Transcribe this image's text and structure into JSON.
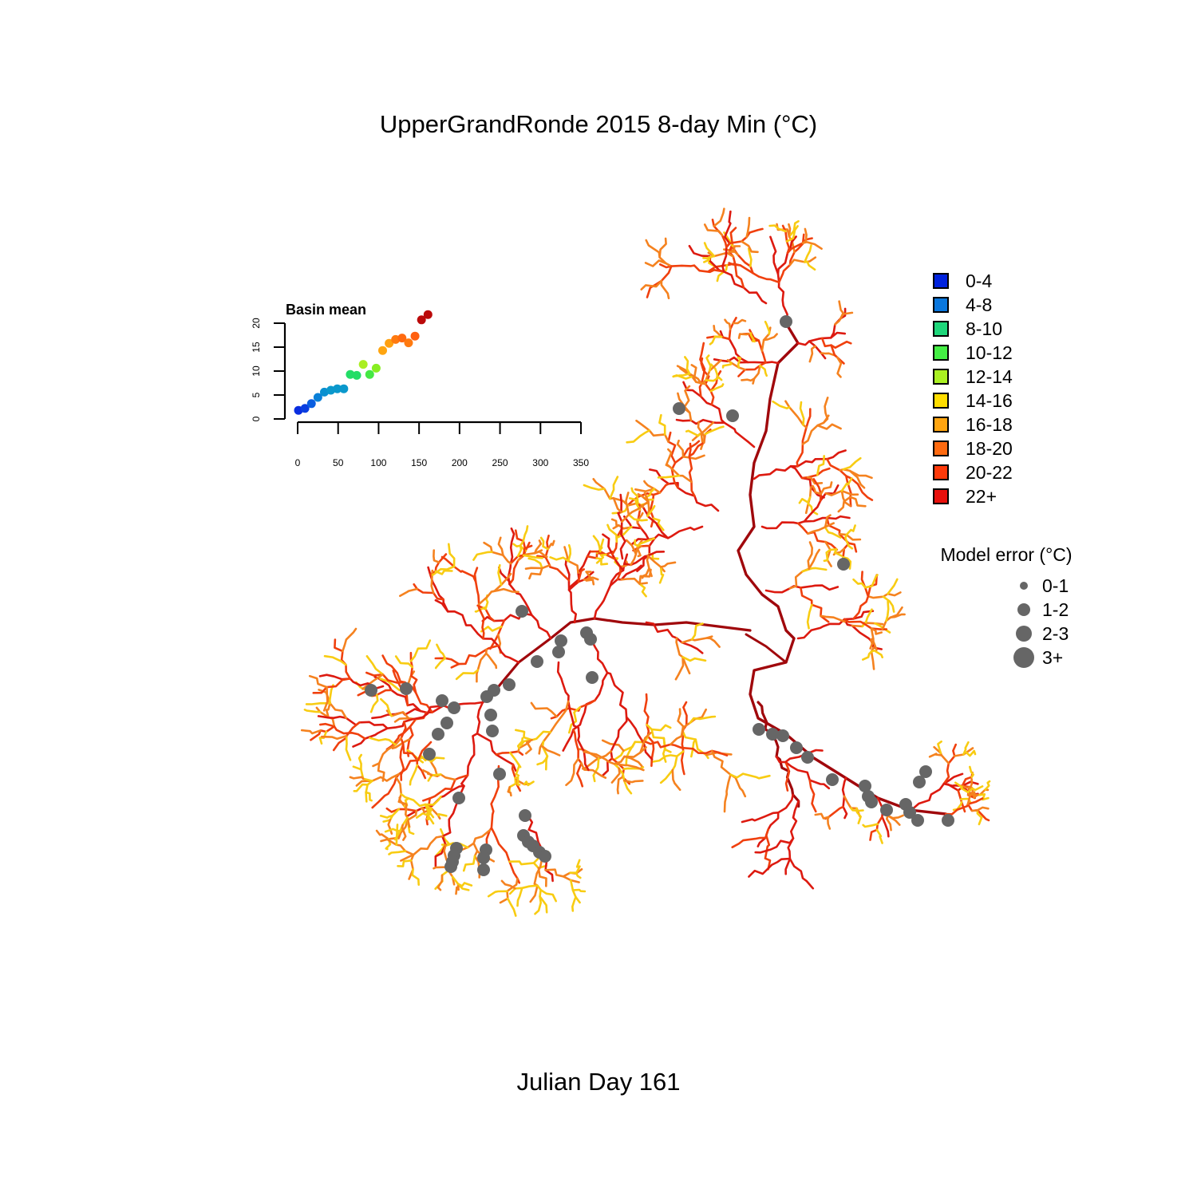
{
  "title": "UpperGrandRonde 2015 8-day Min (°C)",
  "subtitle": "Julian Day 161",
  "colors": {
    "stream_dark": "#a0080c",
    "stream_red": "#dd1a10",
    "stream_orange_red": "#f0400e",
    "stream_orange": "#f5821f",
    "stream_yellow": "#f8cc12",
    "site_marker": "#666666"
  },
  "temperature_legend": {
    "items": [
      {
        "label": "0-4",
        "color": "#0022dd"
      },
      {
        "label": "4-8",
        "color": "#0a77dd"
      },
      {
        "label": "8-10",
        "color": "#1ed67a"
      },
      {
        "label": "10-12",
        "color": "#44ee44"
      },
      {
        "label": "12-14",
        "color": "#aaf022"
      },
      {
        "label": "14-16",
        "color": "#ffdd00"
      },
      {
        "label": "16-18",
        "color": "#ffa510"
      },
      {
        "label": "18-20",
        "color": "#ff6a10"
      },
      {
        "label": "20-22",
        "color": "#ff3a0a"
      },
      {
        "label": "22+",
        "color": "#e8100c"
      }
    ]
  },
  "error_legend": {
    "title": "Model error (°C)",
    "items": [
      {
        "label": "0-1",
        "size": 1
      },
      {
        "label": "1-2",
        "size": 2
      },
      {
        "label": "2-3",
        "size": 3
      },
      {
        "label": "3+",
        "size": 4
      }
    ]
  },
  "chart_data": {
    "type": "scatter",
    "title": "Basin mean",
    "xlabel": "",
    "ylabel": "",
    "xlim": [
      0,
      350
    ],
    "ylim": [
      0,
      20
    ],
    "x_ticks": [
      0,
      50,
      100,
      150,
      200,
      250,
      300,
      350
    ],
    "y_ticks": [
      0,
      5,
      10,
      15,
      20
    ],
    "points": [
      {
        "x": 1,
        "y": 1.8,
        "color": "#0a2ee0"
      },
      {
        "x": 9,
        "y": 2.2,
        "color": "#0a3ee0"
      },
      {
        "x": 17,
        "y": 3.2,
        "color": "#0a5ee0"
      },
      {
        "x": 25,
        "y": 4.5,
        "color": "#0a80d8"
      },
      {
        "x": 33,
        "y": 5.6,
        "color": "#0a90d0"
      },
      {
        "x": 41,
        "y": 6.0,
        "color": "#0a98cc"
      },
      {
        "x": 49,
        "y": 6.3,
        "color": "#0a98cc"
      },
      {
        "x": 57,
        "y": 6.3,
        "color": "#0a98cc"
      },
      {
        "x": 65,
        "y": 9.3,
        "color": "#22dd66"
      },
      {
        "x": 73,
        "y": 9.1,
        "color": "#22dd66"
      },
      {
        "x": 81,
        "y": 11.4,
        "color": "#aaee22"
      },
      {
        "x": 89,
        "y": 9.3,
        "color": "#44e844"
      },
      {
        "x": 97,
        "y": 10.6,
        "color": "#88ee22"
      },
      {
        "x": 105,
        "y": 14.3,
        "color": "#ffa510"
      },
      {
        "x": 113,
        "y": 15.8,
        "color": "#ffa010"
      },
      {
        "x": 121,
        "y": 16.6,
        "color": "#ff7a10"
      },
      {
        "x": 129,
        "y": 16.9,
        "color": "#ff6a10"
      },
      {
        "x": 137,
        "y": 15.9,
        "color": "#ff7a10"
      },
      {
        "x": 145,
        "y": 17.3,
        "color": "#ff6010"
      },
      {
        "x": 153,
        "y": 20.7,
        "color": "#bb0a0a"
      },
      {
        "x": 161,
        "y": 21.8,
        "color": "#bb0a0a"
      }
    ]
  }
}
